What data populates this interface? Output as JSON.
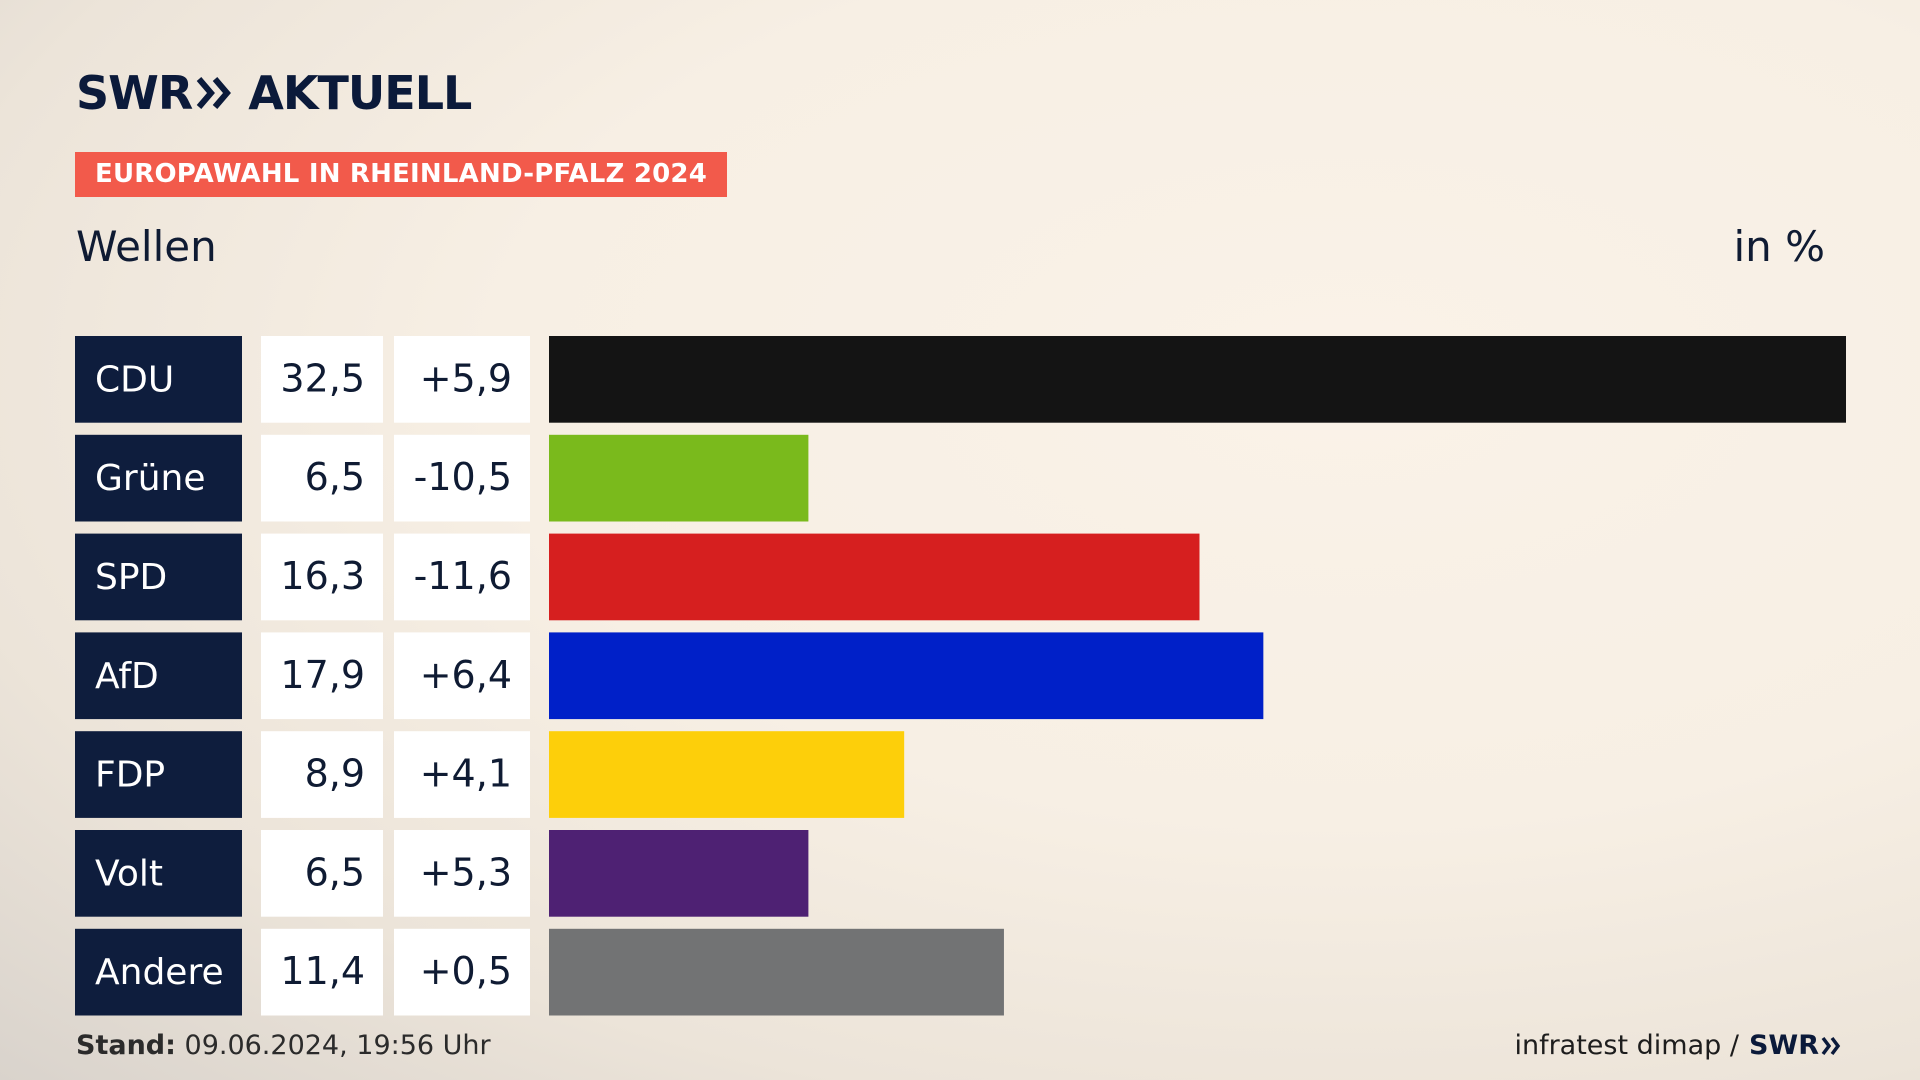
{
  "brand": {
    "logo_left": "SWR",
    "logo_right": "AKTUELL"
  },
  "headline": "EUROPAWAHL IN RHEINLAND-PFALZ 2024",
  "subtitle": "Wellen",
  "unit": "in %",
  "footer": {
    "stand_label": "Stand:",
    "stand_value": "09.06.2024, 19:56 Uhr",
    "source": "infratest dimap /",
    "source_brand": "SWR"
  },
  "chart_data": {
    "type": "bar",
    "orientation": "horizontal",
    "categories": [
      "CDU",
      "Grüne",
      "SPD",
      "AfD",
      "FDP",
      "Volt",
      "Andere"
    ],
    "values": [
      32.5,
      6.5,
      16.3,
      17.9,
      8.9,
      6.5,
      11.4
    ],
    "value_labels": [
      "32,5",
      "6,5",
      "16,3",
      "17,9",
      "8,9",
      "6,5",
      "11,4"
    ],
    "change_labels": [
      "+5,9",
      "-10,5",
      "-11,6",
      "+6,4",
      "+4,1",
      "+5,3",
      "+0,5"
    ],
    "colors": [
      "#141414",
      "#7aba1c",
      "#d61f1f",
      "#0020c8",
      "#fdcf0a",
      "#4e2173",
      "#727374"
    ],
    "xlim": [
      0,
      32.5
    ],
    "grid": false,
    "legend": "none"
  }
}
